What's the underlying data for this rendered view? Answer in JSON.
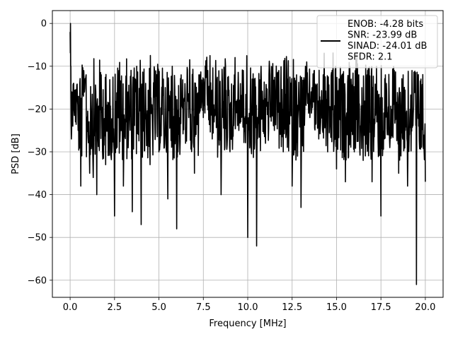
{
  "chart_data": {
    "type": "line",
    "title": "",
    "xlabel": "Frequency [MHz]",
    "ylabel": "PSD [dB]",
    "xlim": [
      -1.0,
      21.0
    ],
    "ylim": [
      -64.0,
      3.0
    ],
    "xticks": [
      0.0,
      2.5,
      5.0,
      7.5,
      10.0,
      12.5,
      15.0,
      17.5,
      20.0
    ],
    "xtick_labels": [
      "0.0",
      "2.5",
      "5.0",
      "7.5",
      "10.0",
      "12.5",
      "15.0",
      "17.5",
      "20.0"
    ],
    "yticks": [
      0,
      -10,
      -20,
      -30,
      -40,
      -50,
      -60
    ],
    "ytick_labels": [
      "0",
      "−10",
      "−20",
      "−30",
      "−40",
      "−50",
      "−60"
    ],
    "grid": true,
    "legend_position": "top-right",
    "legend": [
      "ENOB: -4.28 bits",
      "SNR: -23.99 dB",
      "SINAD: -24.01 dB",
      "SFDR: 2.1"
    ],
    "series": [
      {
        "color": "#000000",
        "x": [
          0.0,
          0.02,
          0.04,
          0.07,
          0.1,
          0.15,
          0.2,
          0.3,
          0.45,
          0.6,
          0.75,
          0.9,
          1.1,
          1.3,
          1.5,
          1.75,
          2.0,
          2.25,
          2.5,
          2.75,
          3.0,
          3.25,
          3.5,
          3.75,
          4.0,
          4.25,
          4.5,
          4.75,
          5.0,
          5.25,
          5.5,
          5.75,
          6.0,
          6.25,
          6.5,
          6.75,
          7.0,
          7.25,
          7.5,
          7.75,
          8.0,
          8.25,
          8.5,
          8.75,
          9.0,
          9.25,
          9.5,
          9.75,
          10.0,
          10.25,
          10.5,
          10.75,
          11.0,
          11.25,
          11.5,
          11.75,
          12.0,
          12.25,
          12.5,
          12.75,
          13.0,
          13.25,
          13.5,
          13.75,
          14.0,
          14.25,
          14.5,
          14.75,
          15.0,
          15.25,
          15.5,
          15.75,
          16.0,
          16.25,
          16.5,
          16.75,
          17.0,
          17.25,
          17.5,
          17.75,
          18.0,
          18.25,
          18.5,
          18.75,
          19.0,
          19.25,
          19.5,
          19.75,
          20.0
        ],
        "y": [
          -2.0,
          0.0,
          -10.0,
          -27.0,
          -16.0,
          -24.0,
          -14.0,
          -23.0,
          -25.0,
          -38.0,
          -17.0,
          -12.0,
          -35.0,
          -36.0,
          -40.0,
          -12.0,
          -33.0,
          -20.0,
          -45.0,
          -11.0,
          -38.0,
          -16.0,
          -44.0,
          -10.0,
          -47.0,
          -14.0,
          -33.0,
          -11.0,
          -30.0,
          -13.0,
          -41.0,
          -10.0,
          -48.0,
          -12.0,
          -28.0,
          -14.0,
          -35.0,
          -12.0,
          -22.0,
          -11.0,
          -27.0,
          -13.0,
          -40.0,
          -10.0,
          -30.0,
          -12.0,
          -25.0,
          -11.0,
          -50.0,
          -13.0,
          -52.0,
          -10.0,
          -28.0,
          -12.0,
          -25.0,
          -11.0,
          -30.0,
          -13.0,
          -38.0,
          -12.0,
          -43.0,
          -10.0,
          -22.0,
          -11.0,
          -27.0,
          -12.0,
          -30.0,
          -11.0,
          -34.0,
          -13.0,
          -37.0,
          -10.0,
          -30.0,
          -12.0,
          -32.0,
          -11.0,
          -37.0,
          -10.0,
          -45.0,
          -12.0,
          -29.0,
          -11.0,
          -35.0,
          -12.0,
          -38.0,
          -11.0,
          -61.0,
          -13.0,
          -37.0
        ]
      }
    ]
  }
}
